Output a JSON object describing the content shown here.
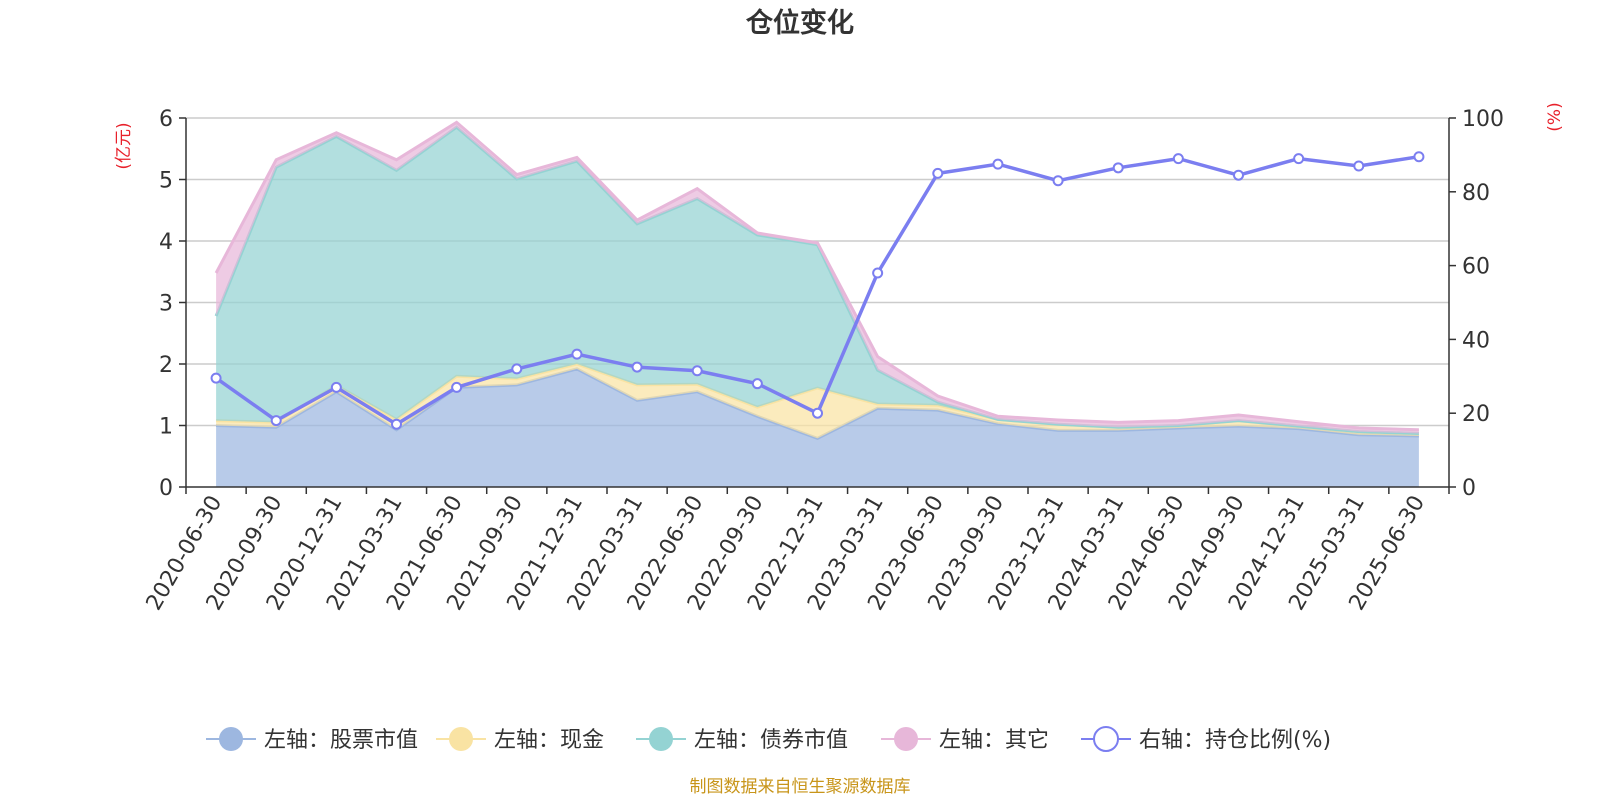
{
  "chart_data": {
    "type": "area",
    "title": "仓位变化",
    "left_axis_unit": "(亿元)",
    "right_axis_unit": "(%)",
    "x": [
      "2020-06-30",
      "2020-09-30",
      "2020-12-31",
      "2021-03-31",
      "2021-06-30",
      "2021-09-30",
      "2021-12-31",
      "2022-03-31",
      "2022-06-30",
      "2022-09-30",
      "2022-12-31",
      "2023-03-31",
      "2023-06-30",
      "2023-09-30",
      "2023-12-31",
      "2024-03-31",
      "2024-06-30",
      "2024-09-30",
      "2024-12-31",
      "2025-03-31",
      "2025-06-30"
    ],
    "left_ylim": [
      0,
      6
    ],
    "left_ticks": [
      0,
      1,
      2,
      3,
      4,
      5,
      6
    ],
    "right_ylim": [
      0,
      100
    ],
    "right_ticks": [
      0,
      20,
      40,
      60,
      80,
      100
    ],
    "grid": true,
    "legend_position": "bottom",
    "stacked_series": [
      {
        "name": "左轴：股票市值",
        "axis": "left",
        "color": "#9db7e0",
        "values": [
          1.0,
          0.97,
          1.55,
          0.93,
          1.62,
          1.66,
          1.92,
          1.41,
          1.55,
          1.15,
          0.79,
          1.28,
          1.25,
          1.03,
          0.92,
          0.92,
          0.96,
          0.99,
          0.95,
          0.85,
          0.83
        ]
      },
      {
        "name": "左轴：现金",
        "axis": "left",
        "color": "#f9e3a3",
        "values": [
          0.08,
          0.08,
          0.1,
          0.17,
          0.18,
          0.1,
          0.08,
          0.25,
          0.12,
          0.15,
          0.82,
          0.07,
          0.08,
          0.07,
          0.1,
          0.05,
          0.04,
          0.09,
          0.04,
          0.05,
          0.04
        ]
      },
      {
        "name": "左轴：债券市值",
        "axis": "left",
        "color": "#94d3d3",
        "values": [
          1.7,
          4.15,
          4.05,
          4.05,
          4.05,
          3.25,
          3.3,
          2.62,
          3.02,
          2.8,
          2.33,
          0.55,
          0.05,
          0.0,
          0.0,
          0.0,
          0.0,
          0.0,
          0.0,
          0.0,
          0.0
        ]
      },
      {
        "name": "左轴：其它",
        "axis": "left",
        "color": "#e7b7d9",
        "values": [
          0.7,
          0.12,
          0.06,
          0.17,
          0.08,
          0.07,
          0.06,
          0.06,
          0.16,
          0.03,
          0.03,
          0.22,
          0.1,
          0.05,
          0.07,
          0.08,
          0.08,
          0.09,
          0.07,
          0.06,
          0.06
        ]
      }
    ],
    "line_series": {
      "name": "右轴：持仓比例(%)",
      "axis": "right",
      "color": "#7b7ef0",
      "values": [
        29.5,
        18.0,
        27.0,
        17.0,
        27.0,
        32.0,
        36.0,
        32.5,
        31.5,
        28.0,
        20.0,
        58.0,
        85.0,
        87.5,
        83.0,
        86.5,
        89.0,
        84.5,
        89.0,
        87.0,
        89.5
      ]
    },
    "source_note": "制图数据来自恒生聚源数据库"
  }
}
